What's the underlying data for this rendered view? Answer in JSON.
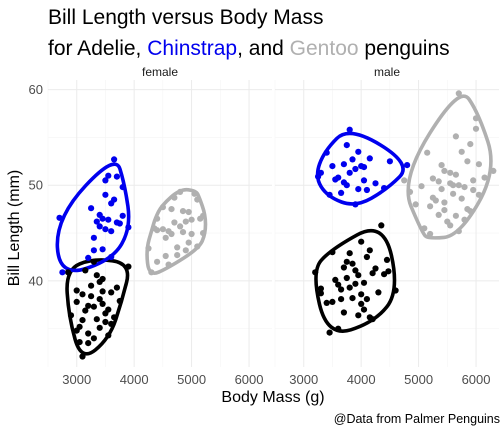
{
  "chart_data": {
    "type": "scatter",
    "title": "Bill Length versus Body Mass",
    "subtitle_parts": [
      {
        "text": "for Adelie, ",
        "color": "#000000"
      },
      {
        "text": "Chinstrap",
        "color": "#0000EE"
      },
      {
        "text": ", and ",
        "color": "#000000"
      },
      {
        "text": "Gentoo",
        "color": "#B0B0B0"
      },
      {
        "text": " penguins",
        "color": "#000000"
      }
    ],
    "xlabel": "Body Mass (g)",
    "ylabel": "Bill Length (mm)",
    "caption": "@Data from Palmer Penguins",
    "xlim": [
      2500,
      6400
    ],
    "ylim": [
      31,
      61
    ],
    "xticks": [
      3000,
      4000,
      5000,
      6000
    ],
    "xtick_labels": [
      "3000",
      "4000",
      "5000",
      "6000"
    ],
    "yticks": [
      40,
      50,
      60
    ],
    "ytick_labels": [
      "40",
      "50",
      "60"
    ],
    "grid": true,
    "legend": "none",
    "colors": {
      "Adelie": "#000000",
      "Chinstrap": "#0000EE",
      "Gentoo": "#B0B0B0"
    },
    "panels": [
      {
        "label": "female",
        "series": [
          {
            "species": "Adelie",
            "color": "#000000",
            "points": [
              [
                2900,
                36.4
              ],
              [
                3000,
                37.8
              ],
              [
                3050,
                35.2
              ],
              [
                3100,
                38.6
              ],
              [
                3150,
                36.9
              ],
              [
                3200,
                34.5
              ],
              [
                3250,
                39.5
              ],
              [
                3300,
                37.3
              ],
              [
                3350,
                36.0
              ],
              [
                3400,
                38.1
              ],
              [
                3450,
                40.2
              ],
              [
                3500,
                35.7
              ],
              [
                3550,
                37.0
              ],
              [
                3600,
                38.8
              ],
              [
                3650,
                36.2
              ],
              [
                3100,
                32.1
              ],
              [
                3200,
                33.5
              ],
              [
                3300,
                34.0
              ],
              [
                3400,
                35.1
              ],
              [
                3000,
                39.0
              ],
              [
                3150,
                41.1
              ],
              [
                3350,
                40.6
              ],
              [
                3700,
                39.3
              ],
              [
                3450,
                37.6
              ],
              [
                3250,
                38.4
              ],
              [
                2850,
                40.9
              ],
              [
                3050,
                33.6
              ],
              [
                3500,
                36.6
              ],
              [
                3600,
                35.5
              ],
              [
                3750,
                37.9
              ],
              [
                3300,
                42.0
              ],
              [
                3900,
                41.5
              ],
              [
                3200,
                37.4
              ],
              [
                3400,
                39.9
              ],
              [
                3100,
                35.9
              ],
              [
                3550,
                34.3
              ],
              [
                3000,
                34.8
              ],
              [
                3450,
                38.9
              ]
            ]
          },
          {
            "species": "Chinstrap",
            "color": "#0000EE",
            "points": [
              [
                3450,
                46.5
              ],
              [
                3500,
                45.4
              ],
              [
                3600,
                45.2
              ],
              [
                3700,
                46.1
              ],
              [
                3400,
                45.7
              ],
              [
                3300,
                43.2
              ],
              [
                3550,
                46.4
              ],
              [
                3650,
                48.5
              ],
              [
                3500,
                50.5
              ],
              [
                3700,
                50.9
              ],
              [
                3800,
                49.8
              ],
              [
                3600,
                42.5
              ],
              [
                3200,
                42.4
              ],
              [
                3400,
                46.9
              ],
              [
                3300,
                44.5
              ],
              [
                3750,
                46.0
              ],
              [
                3650,
                52.7
              ],
              [
                2700,
                46.6
              ],
              [
                3250,
                47.6
              ],
              [
                3500,
                49.0
              ],
              [
                3900,
                45.6
              ],
              [
                3600,
                48.1
              ],
              [
                3450,
                43.3
              ],
              [
                3350,
                46.2
              ],
              [
                2750,
                40.9
              ],
              [
                3800,
                46.8
              ],
              [
                3550,
                51.0
              ]
            ]
          },
          {
            "species": "Gentoo",
            "color": "#B0B0B0",
            "points": [
              [
                4400,
                46.5
              ],
              [
                4500,
                45.4
              ],
              [
                4600,
                45.2
              ],
              [
                4700,
                46.1
              ],
              [
                4800,
                45.7
              ],
              [
                4900,
                43.2
              ],
              [
                5000,
                46.4
              ],
              [
                5100,
                48.5
              ],
              [
                4400,
                42.0
              ],
              [
                4650,
                44.9
              ],
              [
                4750,
                43.5
              ],
              [
                4850,
                47.3
              ],
              [
                4950,
                47.2
              ],
              [
                5050,
                49.1
              ],
              [
                5200,
                46.8
              ],
              [
                4300,
                40.9
              ],
              [
                4550,
                44.5
              ],
              [
                4650,
                47.5
              ],
              [
                4750,
                42.7
              ],
              [
                4850,
                45.1
              ],
              [
                4950,
                44.0
              ],
              [
                5100,
                43.6
              ],
              [
                4500,
                47.7
              ],
              [
                4700,
                48.7
              ],
              [
                4400,
                45.3
              ],
              [
                4600,
                41.7
              ],
              [
                5000,
                44.9
              ],
              [
                5150,
                46.5
              ],
              [
                4250,
                43.4
              ],
              [
                4800,
                49.3
              ],
              [
                4900,
                46.2
              ],
              [
                5200,
                45.0
              ],
              [
                4550,
                42.6
              ],
              [
                4350,
                45.5
              ]
            ]
          }
        ]
      },
      {
        "label": "male",
        "series": [
          {
            "species": "Adelie",
            "color": "#000000",
            "points": [
              [
                3650,
                39.1
              ],
              [
                3750,
                40.3
              ],
              [
                3800,
                39.3
              ],
              [
                3900,
                41.1
              ],
              [
                4000,
                38.6
              ],
              [
                4100,
                42.5
              ],
              [
                4200,
                40.8
              ],
              [
                3500,
                37.8
              ],
              [
                3600,
                39.6
              ],
              [
                3700,
                41.4
              ],
              [
                3850,
                38.2
              ],
              [
                3950,
                40.6
              ],
              [
                4050,
                39.8
              ],
              [
                4150,
                43.2
              ],
              [
                4250,
                41.3
              ],
              [
                4300,
                38.8
              ],
              [
                4400,
                40.7
              ],
              [
                4450,
                42.2
              ],
              [
                3300,
                39.2
              ],
              [
                3400,
                37.7
              ],
              [
                3550,
                40.1
              ],
              [
                3650,
                38.1
              ],
              [
                3750,
                42.0
              ],
              [
                3850,
                41.8
              ],
              [
                3950,
                36.4
              ],
              [
                4050,
                37.0
              ],
              [
                4150,
                36.2
              ],
              [
                3450,
                34.6
              ],
              [
                3600,
                35.0
              ],
              [
                3700,
                36.7
              ],
              [
                4000,
                44.1
              ],
              [
                4350,
                45.8
              ],
              [
                3200,
                40.9
              ],
              [
                3500,
                43.0
              ],
              [
                3300,
                38.7
              ],
              [
                3900,
                39.7
              ],
              [
                4100,
                38.1
              ],
              [
                4475,
                41.0
              ],
              [
                3800,
                42.9
              ],
              [
                4000,
                37.6
              ],
              [
                4200,
                36.0
              ],
              [
                4600,
                39.0
              ]
            ]
          },
          {
            "species": "Chinstrap",
            "color": "#0000EE",
            "points": [
              [
                3750,
                50.0
              ],
              [
                3800,
                51.3
              ],
              [
                3850,
                52.7
              ],
              [
                3900,
                51.7
              ],
              [
                4000,
                52.0
              ],
              [
                4050,
                50.5
              ],
              [
                4100,
                49.5
              ],
              [
                3550,
                50.6
              ],
              [
                3650,
                49.2
              ],
              [
                3700,
                52.2
              ],
              [
                3950,
                53.5
              ],
              [
                3300,
                51.3
              ],
              [
                3450,
                49.0
              ],
              [
                3500,
                52.0
              ],
              [
                3600,
                50.8
              ],
              [
                3750,
                54.2
              ],
              [
                4250,
                50.2
              ],
              [
                4400,
                49.7
              ],
              [
                3900,
                48.0
              ],
              [
                4050,
                51.9
              ],
              [
                3800,
                55.8
              ],
              [
                4150,
                52.8
              ],
              [
                4500,
                52.5
              ],
              [
                3700,
                50.3
              ],
              [
                3950,
                49.6
              ],
              [
                3400,
                53.4
              ],
              [
                3250,
                50.9
              ],
              [
                4800,
                52.1
              ]
            ]
          },
          {
            "species": "Gentoo",
            "color": "#B0B0B0",
            "points": [
              [
                5700,
                50.0
              ],
              [
                5600,
                50.0
              ],
              [
                5550,
                50.2
              ],
              [
                5800,
                49.8
              ],
              [
                5650,
                51.1
              ],
              [
                5400,
                49.6
              ],
              [
                5750,
                48.6
              ],
              [
                5850,
                52.5
              ],
              [
                5950,
                50.5
              ],
              [
                6050,
                49.0
              ],
              [
                5200,
                47.8
              ],
              [
                5300,
                48.4
              ],
              [
                5450,
                48.2
              ],
              [
                5500,
                46.2
              ],
              [
                5900,
                54.3
              ],
              [
                6000,
                55.9
              ],
              [
                5250,
                50.7
              ],
              [
                5350,
                46.9
              ],
              [
                5050,
                49.9
              ],
              [
                5150,
                53.4
              ],
              [
                5450,
                47.4
              ],
              [
                5550,
                51.3
              ],
              [
                5650,
                55.1
              ],
              [
                5700,
                45.2
              ],
              [
                5800,
                46.4
              ],
              [
                5950,
                49.5
              ],
              [
                6150,
                50.8
              ],
              [
                6300,
                51.5
              ],
              [
                5100,
                45.5
              ],
              [
                5400,
                52.1
              ],
              [
                5600,
                49.1
              ],
              [
                5750,
                53.5
              ],
              [
                5850,
                47.5
              ],
              [
                4950,
                48.0
              ],
              [
                4850,
                49.3
              ],
              [
                4750,
                50.5
              ],
              [
                5200,
                44.9
              ],
              [
                5550,
                45.8
              ],
              [
                5900,
                47.3
              ],
              [
                6050,
                52.2
              ],
              [
                5350,
                50.4
              ],
              [
                5650,
                46.8
              ],
              [
                5450,
                51.5
              ],
              [
                5250,
                48.7
              ],
              [
                6000,
                57.0
              ],
              [
                5700,
                59.6
              ]
            ]
          }
        ]
      }
    ]
  }
}
